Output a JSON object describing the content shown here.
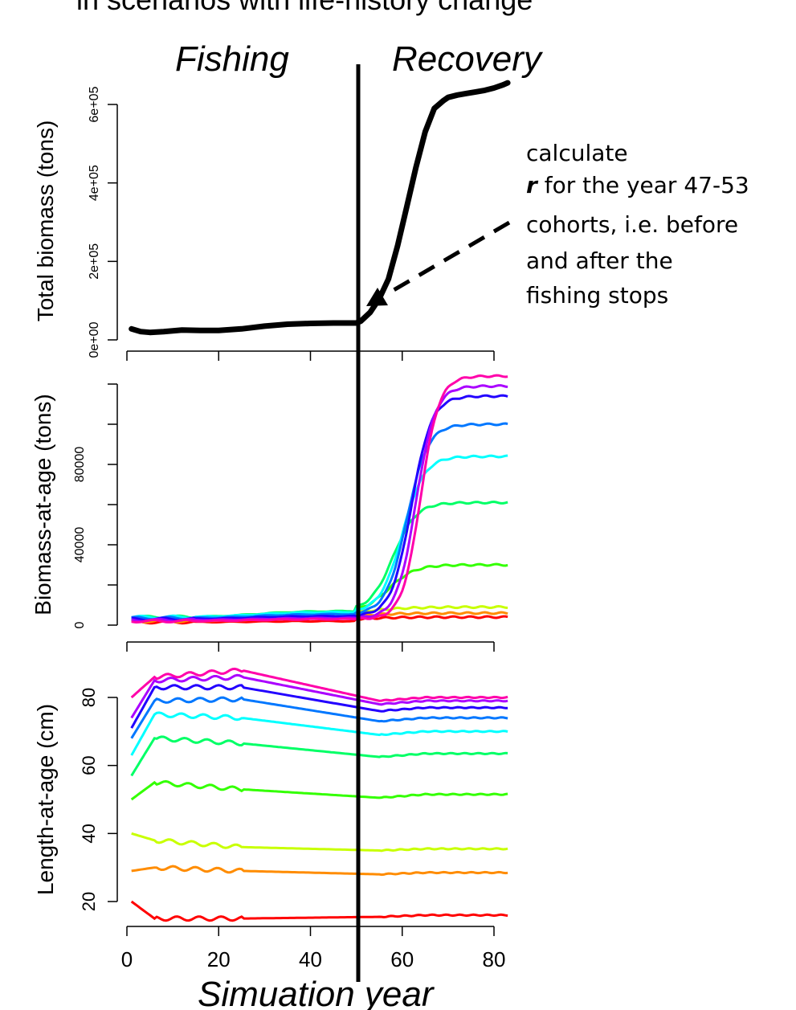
{
  "header_text": "in scenarios with life-history change",
  "labels": {
    "fishing": "Fishing",
    "recovery": "Recovery",
    "xlabel": "Simuation year"
  },
  "annotation": {
    "line1": "calculate",
    "r": "r",
    "line2": " for the year 47-53",
    "line3": "cohorts, i.e. before",
    "line4": "and after the",
    "line5": "fishing stops"
  },
  "colors": {
    "age_series": [
      "#ff0000",
      "#ff8c00",
      "#c8ff00",
      "#33ff00",
      "#00ff66",
      "#00ffff",
      "#0077ff",
      "#2200ff",
      "#aa00ff",
      "#ff00aa"
    ],
    "biomass_line": "#000000"
  },
  "chart_data": [
    {
      "type": "line",
      "ylabel": "Total biomass (tons)",
      "xlim": [
        0,
        83
      ],
      "ylim": [
        0,
        600000
      ],
      "yticks": [
        0,
        200000,
        400000,
        600000
      ],
      "ytick_labels": [
        "0e+00",
        "2e+05",
        "4e+05",
        "6e+05"
      ],
      "xticks": [
        0,
        20,
        40,
        60,
        80
      ],
      "series": [
        {
          "x": [
            1,
            3,
            5,
            8,
            12,
            16,
            20,
            25,
            30,
            35,
            40,
            45,
            49,
            50,
            51,
            53,
            55,
            57,
            59,
            61,
            63,
            65,
            67,
            69,
            70,
            72,
            74,
            76,
            78,
            80,
            82,
            83
          ],
          "values": [
            28000,
            21000,
            19000,
            21000,
            25000,
            24000,
            24000,
            28000,
            35000,
            40000,
            42000,
            43000,
            43000,
            43000,
            48000,
            70000,
            105000,
            155000,
            240000,
            340000,
            440000,
            530000,
            590000,
            610000,
            618000,
            624000,
            628000,
            632000,
            636000,
            642000,
            650000,
            655000
          ]
        }
      ],
      "arrow_note": {
        "x": 55,
        "value": 100000
      }
    },
    {
      "type": "line",
      "ylabel": "Biomass-at-age (tons)",
      "xlim": [
        0,
        83
      ],
      "ylim": [
        0,
        120000
      ],
      "yticks": [
        0,
        20000,
        40000,
        60000,
        80000,
        100000,
        120000
      ],
      "ytick_labels": [
        "0",
        "",
        "40000",
        "",
        "80000",
        "",
        ""
      ],
      "xticks": [
        0,
        20,
        40,
        60,
        80
      ],
      "series": [
        {
          "early": 1500,
          "plateau": 2000,
          "final": 4000,
          "mid": 49,
          "k": 0.2
        },
        {
          "early": 2000,
          "plateau": 3500,
          "final": 6000,
          "mid": 50,
          "k": 0.2
        },
        {
          "early": 2500,
          "plateau": 4500,
          "final": 9000,
          "mid": 51,
          "k": 0.2
        },
        {
          "early": 3000,
          "plateau": 6000,
          "final": 30000,
          "mid": 57,
          "k": 0.35
        },
        {
          "early": 4000,
          "plateau": 7000,
          "final": 61000,
          "mid": 58,
          "k": 0.4
        },
        {
          "early": 4000,
          "plateau": 6500,
          "final": 84000,
          "mid": 60,
          "k": 0.42
        },
        {
          "early": 3500,
          "plateau": 5500,
          "final": 100000,
          "mid": 61,
          "k": 0.44
        },
        {
          "early": 3000,
          "plateau": 4500,
          "final": 114000,
          "mid": 62,
          "k": 0.46
        },
        {
          "early": 2500,
          "plateau": 3500,
          "final": 119000,
          "mid": 63,
          "k": 0.48
        },
        {
          "early": 2000,
          "plateau": 3000,
          "final": 124000,
          "mid": 64,
          "k": 0.5
        }
      ]
    },
    {
      "type": "line",
      "ylabel": "Length-at-age (cm)",
      "xlim": [
        0,
        83
      ],
      "ylim": [
        20,
        80
      ],
      "yticks": [
        20,
        40,
        60,
        80
      ],
      "xticks": [
        0,
        20,
        40,
        60,
        80
      ],
      "series": [
        {
          "start": 20,
          "early": 15,
          "peak": 15,
          "mid": 15.5,
          "end": 16
        },
        {
          "start": 29,
          "early": 30,
          "peak": 29,
          "mid": 28,
          "end": 28.5
        },
        {
          "start": 40,
          "early": 38,
          "peak": 36,
          "mid": 35,
          "end": 35.5
        },
        {
          "start": 50,
          "early": 55,
          "peak": 53,
          "mid": 50.5,
          "end": 51.5
        },
        {
          "start": 57,
          "early": 68,
          "peak": 66.5,
          "mid": 62.5,
          "end": 63.5
        },
        {
          "start": 63,
          "early": 75,
          "peak": 74,
          "mid": 69,
          "end": 70
        },
        {
          "start": 68,
          "early": 79,
          "peak": 79.5,
          "mid": 73,
          "end": 74
        },
        {
          "start": 71,
          "early": 83,
          "peak": 83,
          "mid": 76,
          "end": 77
        },
        {
          "start": 74,
          "early": 85,
          "peak": 86,
          "mid": 78,
          "end": 79
        },
        {
          "start": 80,
          "early": 86,
          "peak": 88,
          "mid": 79,
          "end": 80
        }
      ]
    }
  ]
}
